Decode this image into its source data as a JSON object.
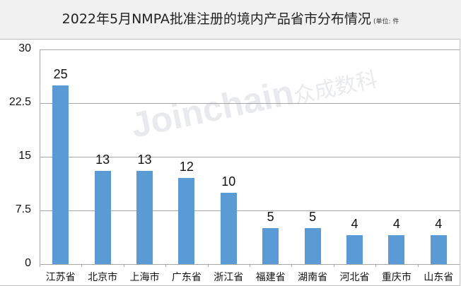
{
  "title": "2022年5月NMPA批准注册的境内产品省市分布情况",
  "unit_note": "(单位: 件",
  "watermark": {
    "brand": "Joinchain",
    "cn": "众成数科"
  },
  "colors": {
    "bar": "#5b9bd5",
    "grid": "#a6a6a6"
  },
  "chart_data": {
    "type": "bar",
    "title": "2022年5月NMPA批准注册的境内产品省市分布情况",
    "subtitle": "(单位: 件",
    "categories": [
      "江苏省",
      "北京市",
      "上海市",
      "广东省",
      "浙江省",
      "福建省",
      "湖南省",
      "河北省",
      "重庆市",
      "山东省"
    ],
    "values": [
      25,
      13,
      13,
      12,
      10,
      5,
      5,
      4,
      4,
      4
    ],
    "value_labels": [
      "25",
      "13",
      "13",
      "12",
      "10",
      "5",
      "5",
      "4",
      "4",
      "4"
    ],
    "xlabel": "",
    "ylabel": "",
    "ylim": [
      0,
      30
    ],
    "yticks": [
      "0",
      "7.5",
      "15",
      "22.5",
      "30"
    ],
    "grid": true,
    "legend": "none"
  }
}
